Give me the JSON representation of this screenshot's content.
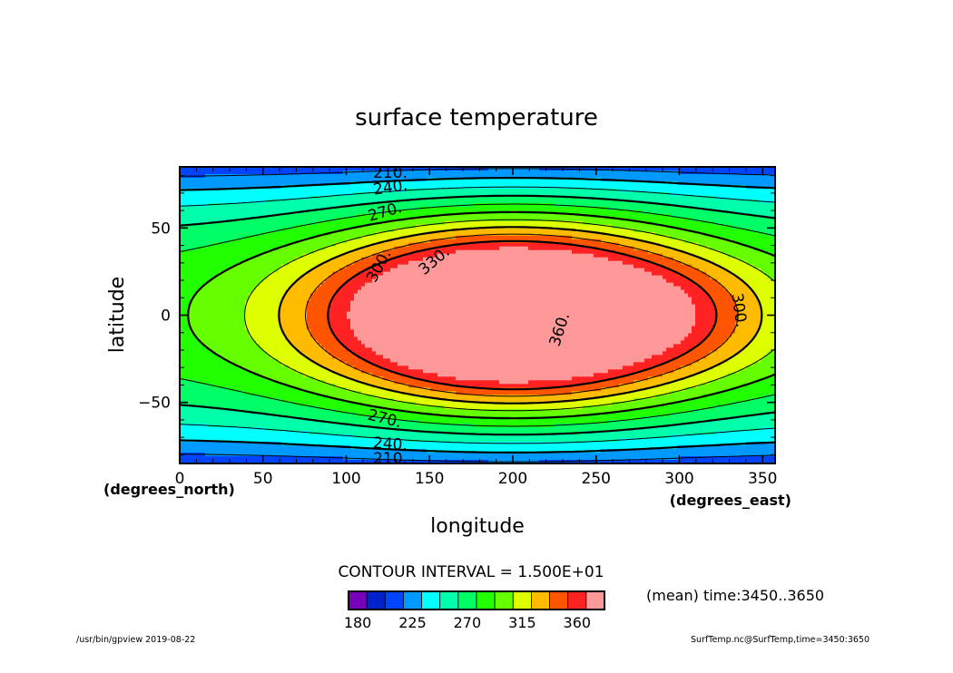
{
  "chart_data": {
    "type": "heatmap",
    "title": "surface temperature",
    "xlabel": "longitude",
    "ylabel": "latitude",
    "x_unit": "(degrees_east)",
    "y_unit": "(degrees_north)",
    "xlim": [
      0,
      357.5
    ],
    "ylim": [
      -85,
      85
    ],
    "x_ticks": [
      0,
      50,
      100,
      150,
      200,
      250,
      300,
      350
    ],
    "y_ticks": [
      -50,
      0,
      50
    ],
    "x_tick_labels": [
      "0",
      "50",
      "100",
      "150",
      "200",
      "250",
      "300",
      "350"
    ],
    "y_tick_labels": [
      "−50",
      "0",
      "50"
    ],
    "contour_interval_text": "CONTOUR INTERVAL = 1.500E+01",
    "contour_labels": [
      "210.",
      "240.",
      "270.",
      "300.",
      "330.",
      "360.",
      "300.",
      "270.",
      "240.",
      "210."
    ],
    "colorbar": {
      "levels": [
        180,
        195,
        210,
        225,
        240,
        255,
        270,
        285,
        300,
        315,
        330,
        345,
        360,
        375
      ],
      "tick_labels": [
        "180",
        "225",
        "270",
        "315",
        "360"
      ],
      "colors": [
        "#7700bb",
        "#0022cc",
        "#0044ff",
        "#0099ff",
        "#00ffff",
        "#00ffaa",
        "#00ff66",
        "#22ff00",
        "#66ff00",
        "#ddff00",
        "#ffbb00",
        "#ff5500",
        "#ff2222",
        "#ff9999"
      ]
    },
    "field_description": "warm maximum near lon 200 lat 0 (above 360); minima near poles (below 210)"
  },
  "annotations": {
    "mean_time": "(mean) time:3450..3650",
    "footer_left": "/usr/bin/gpview   2019-08-22",
    "footer_right": "SurfTemp.nc@SurfTemp,time=3450:3650"
  }
}
